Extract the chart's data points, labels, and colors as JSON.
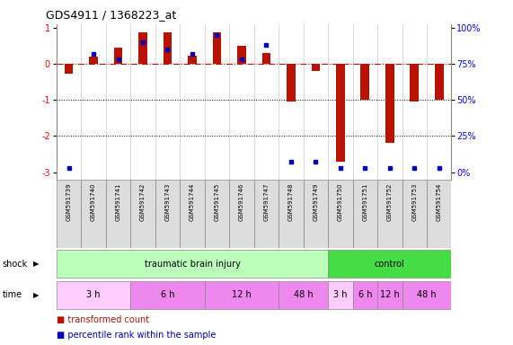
{
  "title": "GDS4911 / 1368223_at",
  "samples": [
    "GSM591739",
    "GSM591740",
    "GSM591741",
    "GSM591742",
    "GSM591743",
    "GSM591744",
    "GSM591745",
    "GSM591746",
    "GSM591747",
    "GSM591748",
    "GSM591749",
    "GSM591750",
    "GSM591751",
    "GSM591752",
    "GSM591753",
    "GSM591754"
  ],
  "red_values": [
    -0.28,
    0.2,
    0.45,
    0.88,
    0.88,
    0.22,
    0.88,
    0.5,
    0.3,
    -1.05,
    -0.2,
    -2.7,
    -1.0,
    -2.2,
    -1.05,
    -1.0
  ],
  "blue_percentile": [
    3,
    82,
    78,
    90,
    85,
    82,
    95,
    78,
    88,
    7,
    7,
    3,
    3,
    3,
    3,
    3
  ],
  "ylim": [
    -3.2,
    1.1
  ],
  "yticks": [
    1,
    0,
    -1,
    -2,
    -3
  ],
  "right_yticks": [
    100,
    75,
    50,
    25,
    0
  ],
  "dotted_lines": [
    -1,
    -2
  ],
  "shock_groups": [
    {
      "label": "traumatic brain injury",
      "start": 0,
      "end": 11,
      "color": "#bbffbb"
    },
    {
      "label": "control",
      "start": 11,
      "end": 16,
      "color": "#44dd44"
    }
  ],
  "time_groups": [
    {
      "label": "3 h",
      "start": 0,
      "end": 3,
      "color": "#ffccff"
    },
    {
      "label": "6 h",
      "start": 3,
      "end": 6,
      "color": "#ee88ee"
    },
    {
      "label": "12 h",
      "start": 6,
      "end": 9,
      "color": "#ee88ee"
    },
    {
      "label": "48 h",
      "start": 9,
      "end": 11,
      "color": "#ee88ee"
    },
    {
      "label": "3 h",
      "start": 11,
      "end": 12,
      "color": "#ffccff"
    },
    {
      "label": "6 h",
      "start": 12,
      "end": 13,
      "color": "#ee88ee"
    },
    {
      "label": "12 h",
      "start": 13,
      "end": 14,
      "color": "#ee88ee"
    },
    {
      "label": "48 h",
      "start": 14,
      "end": 16,
      "color": "#ee88ee"
    }
  ],
  "bar_color": "#bb1100",
  "blue_dot_color": "#0000bb",
  "label_transformed": "transformed count",
  "label_percentile": "percentile rank within the sample",
  "bar_width": 0.35,
  "figwidth": 5.71,
  "figheight": 3.84,
  "dpi": 100
}
